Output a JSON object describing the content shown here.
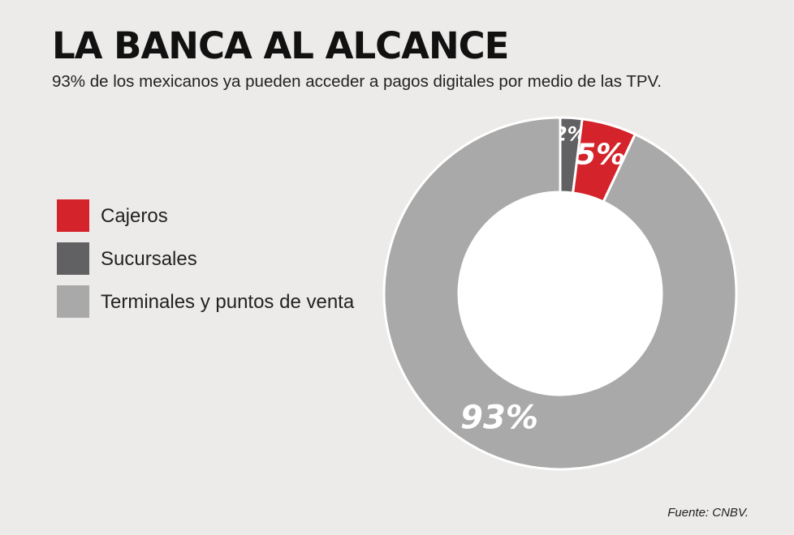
{
  "chart_data": {
    "type": "pie",
    "title": "LA BANCA AL ALCANCE",
    "subtitle": "93% de los mexicanos ya pueden acceder a pagos digitales por medio de las TPV.",
    "slices": [
      {
        "name": "Sucursales",
        "value": 2,
        "label": "2%",
        "color": "#616163"
      },
      {
        "name": "Cajeros",
        "value": 5,
        "label": "5%",
        "color": "#d4232a"
      },
      {
        "name": "Terminales y puntos de venta",
        "value": 93,
        "label": "93%",
        "color": "#a9a9a9"
      }
    ],
    "legend": [
      {
        "label": "Cajeros",
        "color": "#d4232a"
      },
      {
        "label": "Sucursales",
        "color": "#616163"
      },
      {
        "label": "Terminales y puntos de venta",
        "color": "#a9a9a9"
      }
    ],
    "legend_position": "left",
    "donut": true,
    "source": "Fuente: CNBV."
  }
}
